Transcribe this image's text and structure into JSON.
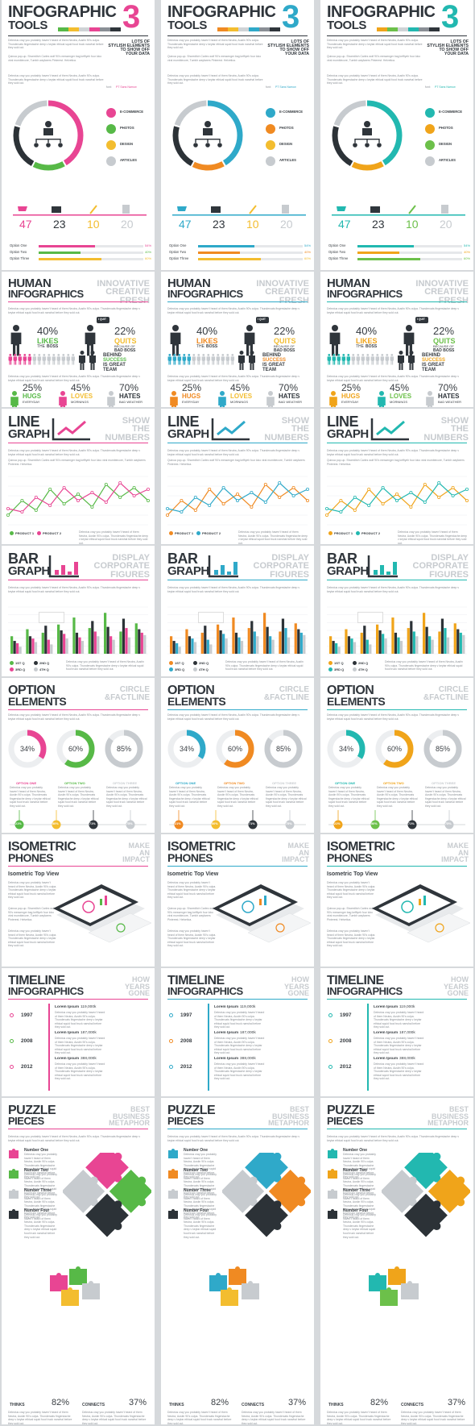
{
  "variants": [
    {
      "p": "#e84593",
      "s": "#57b947",
      "t": "#2c3237",
      "u": "#f3bd2f",
      "v": "#8a8f95"
    },
    {
      "p": "#2fa9c9",
      "s": "#f08a22",
      "t": "#2c3237",
      "u": "#f3bd2f",
      "v": "#8a8f95"
    },
    {
      "p": "#22b8b0",
      "s": "#f0a41a",
      "t": "#2c3237",
      "u": "#6cc04a",
      "v": "#8a8f95"
    }
  ],
  "lorem": "Delectus cray you probably haven't heard of them Neutra, Austin 90's culpa. Thundercats fingerstache deep v keytar ethical squid food truck narwhal before they sold out.",
  "lorem2": "Quinoa pop-up. Shoreditch Carles wolf 90's messenger bag keffiyeh four loko viral mumblecore, Tumblr wayfarers Pinterest. Helvetica.",
  "s1": {
    "title1": "INFOGRAPHIC",
    "title2": "TOOLS",
    "num": "3",
    "tag": [
      "LOTS OF",
      "STYLISH ELEMENTS",
      "TO SHOW OFF",
      "YOUR DATA"
    ],
    "font": "font:",
    "font_name": "PT Sans Narrow",
    "legend": [
      "E-COMMERCE",
      "PHOTOS",
      "DESIGN",
      "ARTICLES"
    ],
    "stats": [
      "47",
      "23",
      "10",
      "20"
    ],
    "options": [
      "Option One",
      "Option Two",
      "Option Three"
    ],
    "pct": [
      "54%",
      "40%",
      "60%"
    ]
  },
  "s2": {
    "title1": "HUMAN",
    "title2": "INFOGRAPHICS",
    "tag": [
      "INNOVATIVE",
      "CREATIVE",
      "FRESH"
    ],
    "quit": "I QUIT",
    "a_pct": "40%",
    "a_w": "LIKES",
    "a_w2": "THE",
    "a_w3": "BOSS",
    "b_pct": "22%",
    "b_w": "QUITS",
    "b_w2": "BECAUSE OF",
    "b_w3": "BAD BOSS",
    "team": [
      "BEHIND",
      "SUCCESS",
      "IS GREAT",
      "TEAM"
    ],
    "c_pct": "25%",
    "c_w": "HUGS",
    "c_w2": "EVERYDAY",
    "d_pct": "45%",
    "d_w": "LOVES",
    "d_w2": "MORNINGS",
    "e_pct": "70%",
    "e_w": "HATES",
    "e_w2": "BAD WEATHER"
  },
  "s3": {
    "title1": "LINE",
    "title2": "GRAPH",
    "tag": [
      "SHOW",
      "THE",
      "NUMBERS"
    ],
    "legend": [
      "PRODUCT 1",
      "PRODUCT 2"
    ],
    "chart_data": {
      "type": "line",
      "x": [
        1,
        2,
        3,
        4,
        5,
        6,
        7,
        8,
        9,
        10,
        11
      ],
      "series": [
        {
          "name": "PRODUCT 1",
          "values": [
            12,
            30,
            18,
            44,
            26,
            38,
            22,
            50,
            34,
            46,
            30
          ]
        },
        {
          "name": "PRODUCT 2",
          "values": [
            20,
            16,
            34,
            24,
            46,
            30,
            40,
            28,
            52,
            36,
            44
          ]
        }
      ],
      "ylim": [
        0,
        60
      ]
    }
  },
  "s4": {
    "title1": "BAR",
    "title2": "GRAPH",
    "tag": [
      "DISPLAY",
      "CORPORATE",
      "FIGURES"
    ],
    "legend": [
      "1ST Q",
      "2ND Q",
      "3RD Q",
      "4TH Q"
    ],
    "chart_data": {
      "type": "bar",
      "categories": [
        "1",
        "2",
        "3",
        "4",
        "5",
        "6",
        "7",
        "8",
        "9"
      ],
      "series": [
        {
          "name": "1ST Q",
          "values": [
            30,
            42,
            36,
            50,
            62,
            44,
            70,
            38,
            52
          ]
        },
        {
          "name": "2ND Q",
          "values": [
            22,
            30,
            48,
            40,
            36,
            56,
            46,
            60,
            42
          ]
        },
        {
          "name": "3RD Q",
          "values": [
            18,
            26,
            24,
            34,
            28,
            38,
            30,
            44,
            36
          ]
        },
        {
          "name": "4TH Q",
          "values": [
            12,
            20,
            16,
            26,
            22,
            30,
            24,
            28,
            32
          ]
        }
      ],
      "ylim": [
        0,
        80
      ]
    }
  },
  "s5": {
    "title1": "OPTION",
    "title2": "ELEMENTS",
    "tag": [
      "CIRCLE",
      "&FACTLINE"
    ],
    "rings": [
      "34%",
      "60%",
      "85%"
    ],
    "opts": [
      "OPTION ONE",
      "OPTION TWO",
      "OPTION THREE"
    ],
    "dots": [
      "21%",
      "50%",
      "71%",
      "75%"
    ]
  },
  "s6": {
    "title1": "ISOMETRIC",
    "title2": "PHONES",
    "tag": [
      "MAKE",
      "AN",
      "IMPACT"
    ],
    "sub": "Isometric Top View"
  },
  "s7": {
    "title1": "TIMELINE",
    "title2": "INFOGRAPHICS",
    "tag": [
      "HOW",
      "YEARS",
      "GONE"
    ],
    "years": [
      "1997",
      "2008",
      "2012"
    ],
    "entries": [
      {
        "label": "Lorem Ipsum",
        "value": "119,000k"
      },
      {
        "label": "Lorem Ipsum",
        "value": "187,000k"
      },
      {
        "label": "Lorem Ipsum",
        "value": "388,000k"
      }
    ]
  },
  "s8": {
    "title1": "PUZZLE",
    "title2": "PIECES",
    "tag": [
      "BEST",
      "BUSINESS",
      "METAPHOR"
    ],
    "nums": [
      "Number One",
      "Number Two",
      "Number Three",
      "Number Four"
    ],
    "thinks": "THINKS",
    "thinks_pct": "82%",
    "connects": "CONNECTS",
    "connects_pct": "37%"
  }
}
